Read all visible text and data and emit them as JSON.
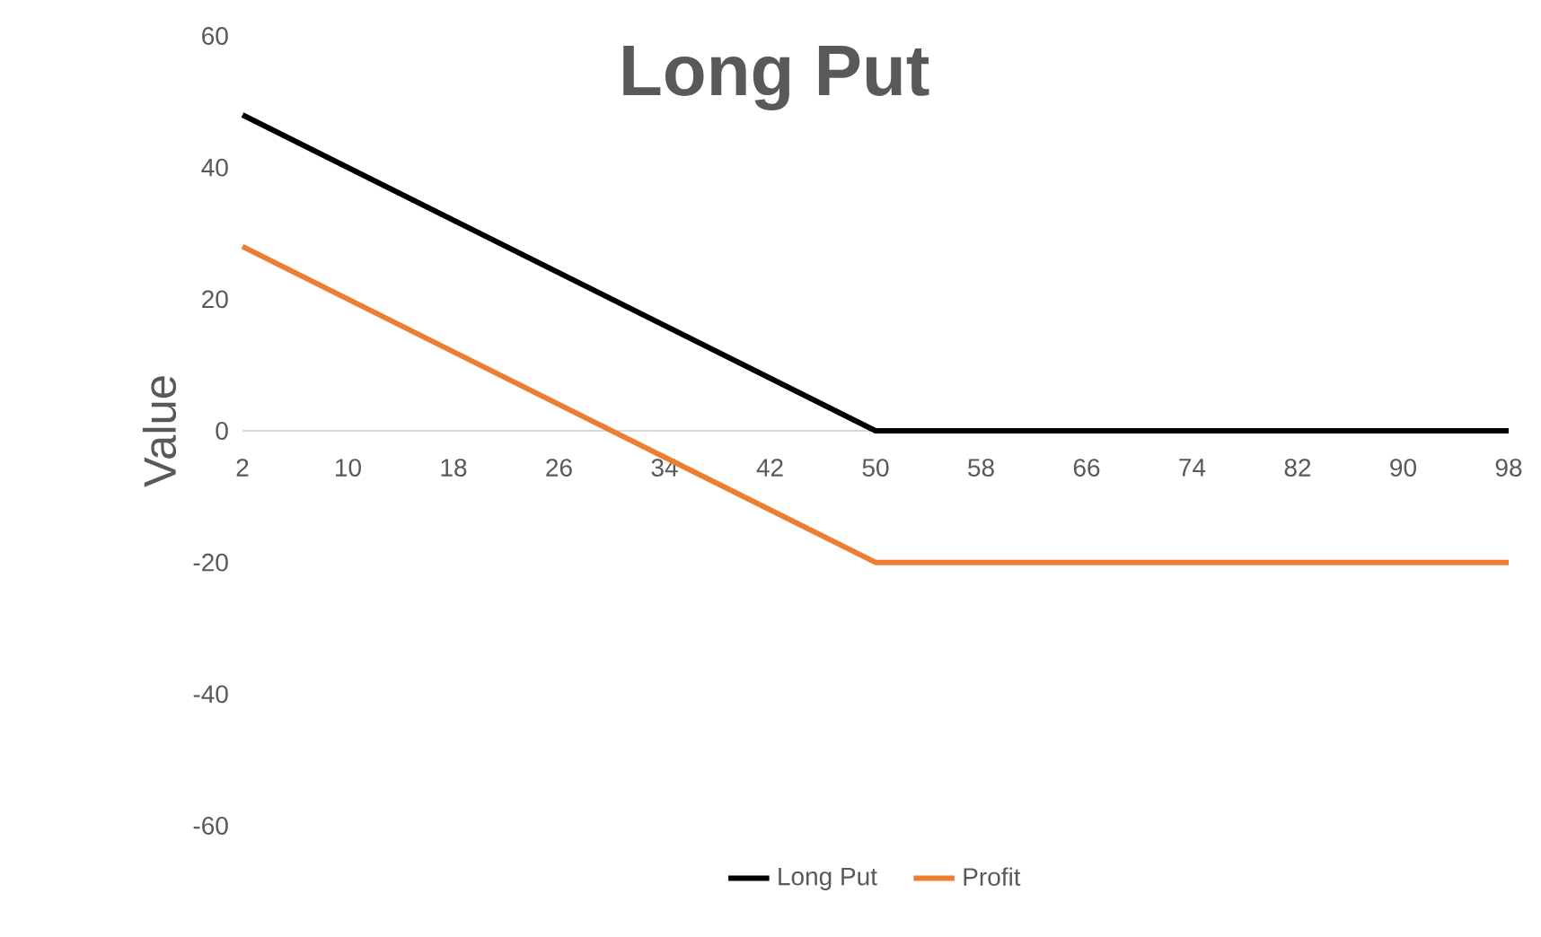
{
  "chart_data": {
    "type": "line",
    "title": "Long Put",
    "ylabel": "Value",
    "x": [
      2,
      50,
      98
    ],
    "series": [
      {
        "name": "Long Put",
        "color": "#000000",
        "values": [
          48,
          0,
          0
        ]
      },
      {
        "name": "Profit",
        "color": "#ed7d31",
        "values": [
          28,
          -20,
          -20
        ]
      }
    ],
    "xlim": [
      2,
      98
    ],
    "xticks": [
      2,
      10,
      18,
      26,
      34,
      42,
      50,
      58,
      66,
      74,
      82,
      90,
      98
    ],
    "ylim": [
      -60,
      60
    ],
    "yticks": [
      -60,
      -40,
      -20,
      0,
      20,
      40,
      60
    ],
    "legend": "bottom"
  }
}
